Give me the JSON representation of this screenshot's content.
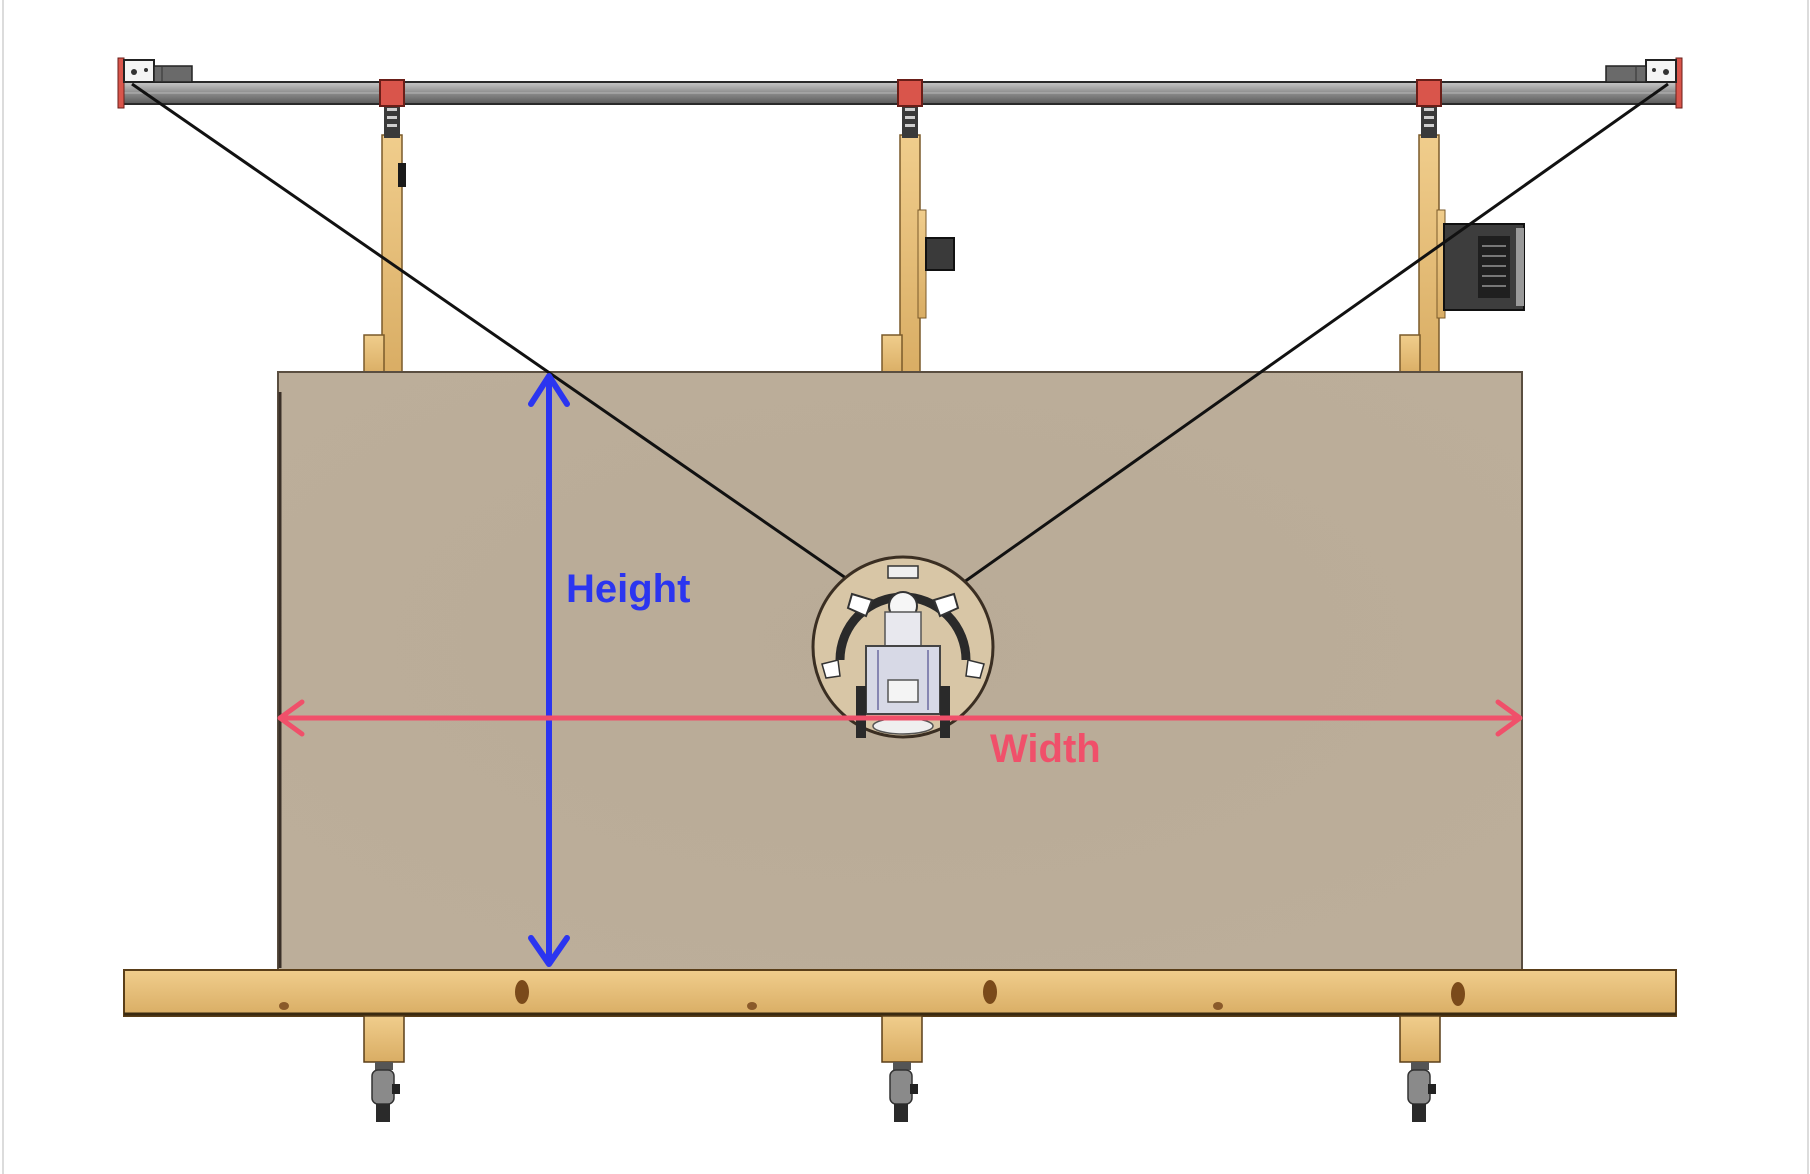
{
  "diagram": {
    "labels": {
      "height": "Height",
      "width": "Width"
    },
    "colors": {
      "height_arrow": "#2b35f0",
      "width_arrow": "#f0506a",
      "board": "#bcae9a",
      "wood": "#e8c27e",
      "rail": "#9a9a9a",
      "bracket": "#d9554b",
      "cable": "#111111"
    },
    "icons": [
      "left-pulley-icon",
      "right-pulley-icon",
      "plotter-carriage-icon",
      "caster-wheel-icon",
      "motor-icon"
    ]
  }
}
